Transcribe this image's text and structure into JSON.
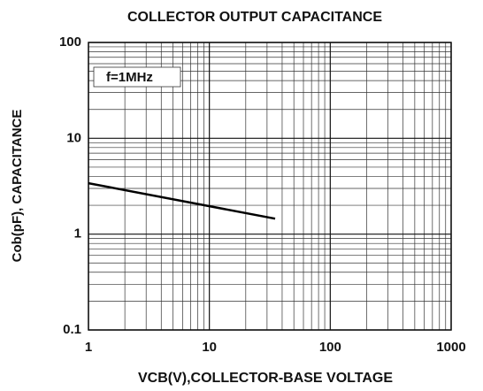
{
  "chart_data": {
    "type": "line",
    "title": "COLLECTOR OUTPUT CAPACITANCE",
    "xlabel": "VCB(V),COLLECTOR-BASE VOLTAGE",
    "ylabel": "Cob(pF), CAPACITANCE",
    "annotation": "f=1MHz",
    "x": [
      1,
      35
    ],
    "values": [
      3.4,
      1.45
    ],
    "color": "#000000",
    "xscale": "log",
    "yscale": "log",
    "xlim": [
      1,
      1000
    ],
    "ylim": [
      0.1,
      100
    ],
    "xticks": [
      1,
      10,
      100,
      1000
    ],
    "yticks": [
      0.1,
      1,
      10,
      100
    ],
    "grid": true
  }
}
